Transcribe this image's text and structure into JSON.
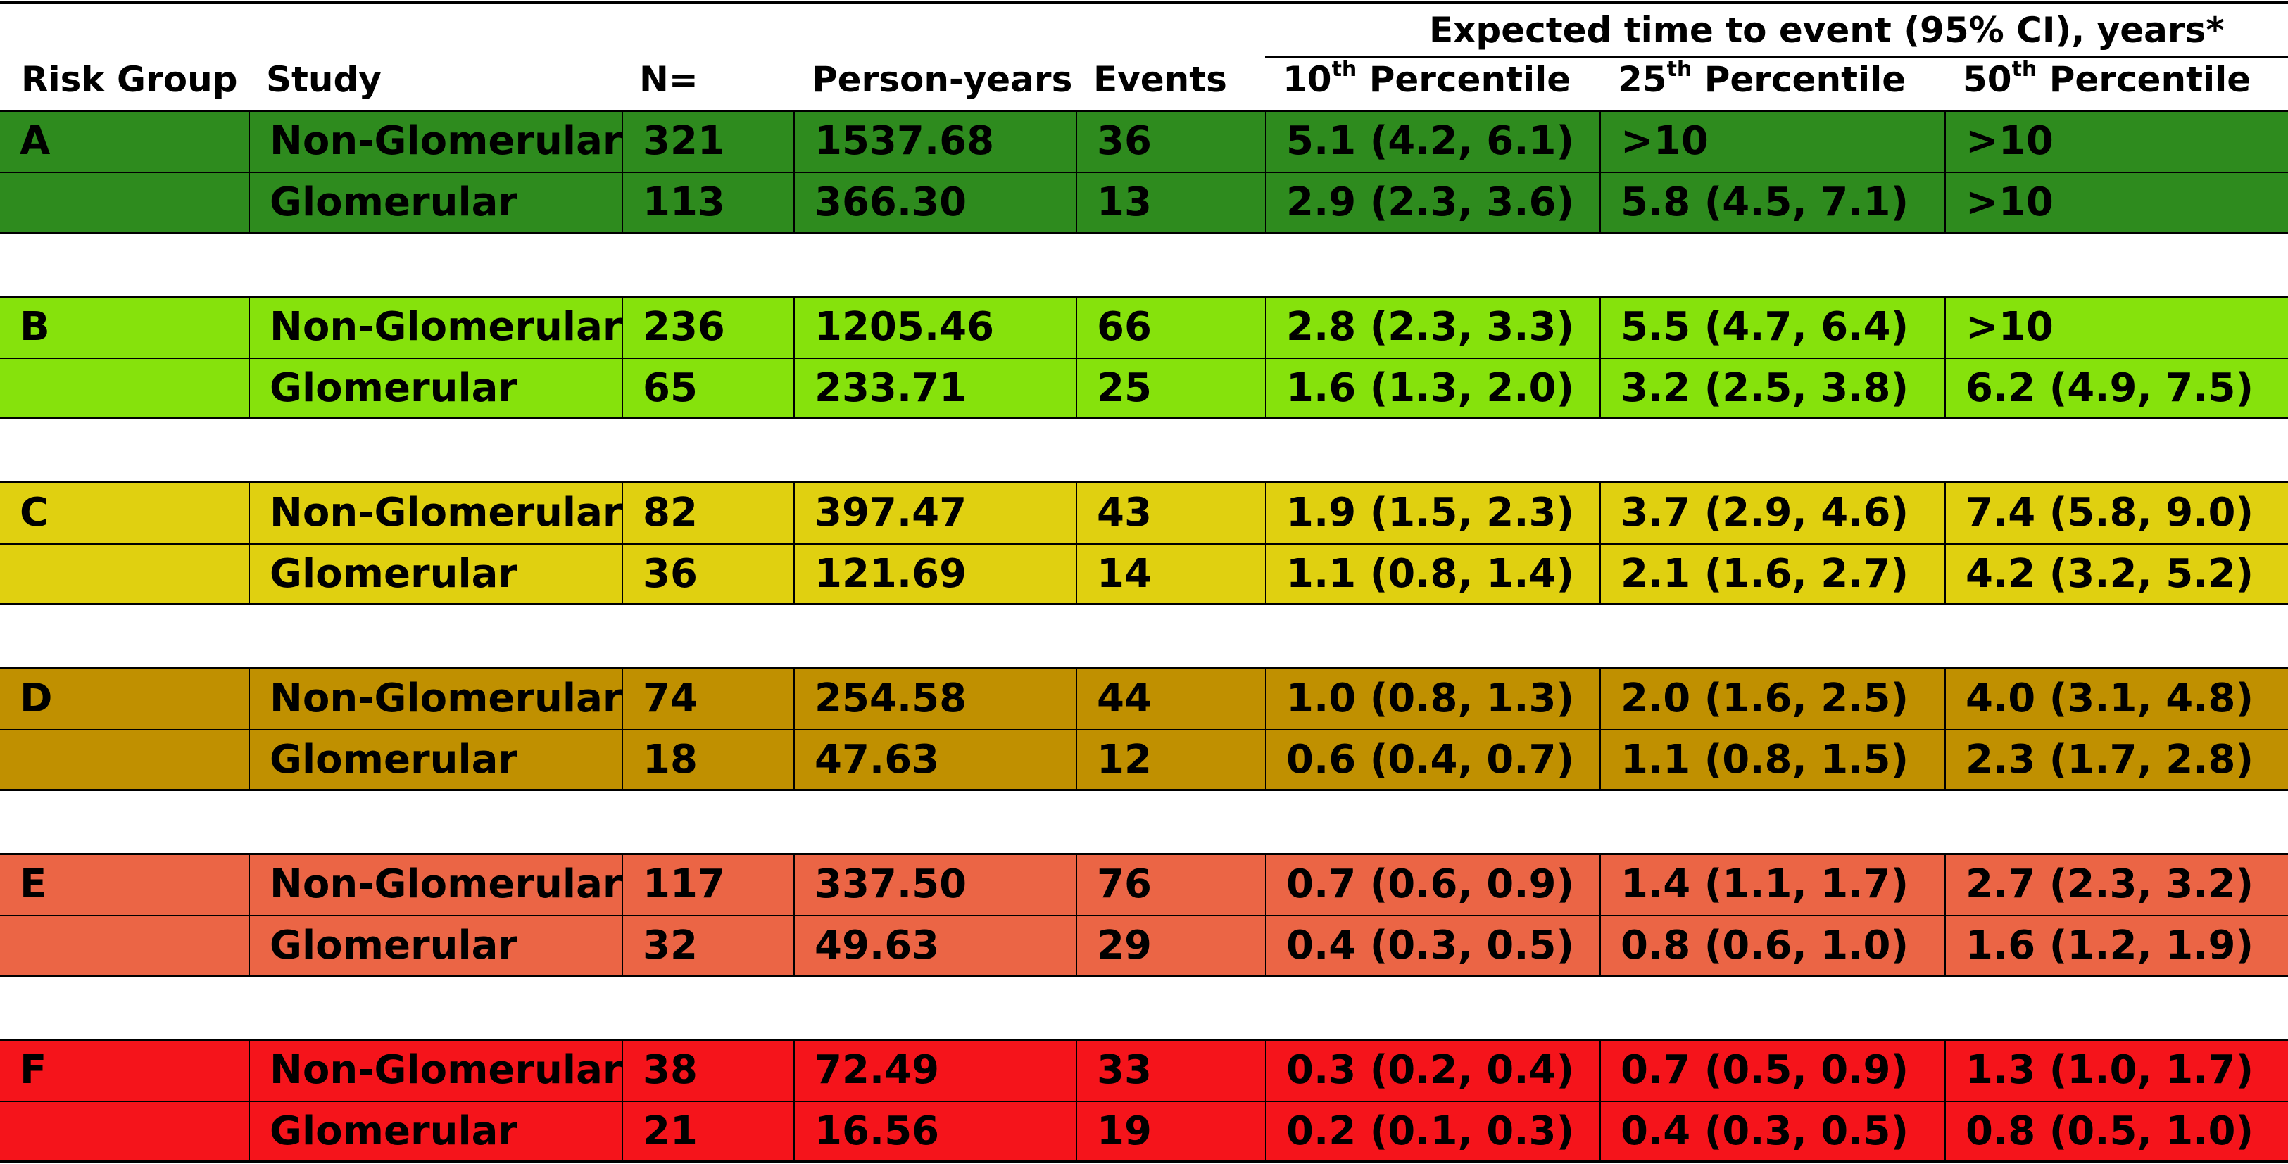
{
  "table": {
    "group_header": "Expected time to event (95% CI), years*",
    "columns": [
      {
        "label": "Risk Group",
        "sup": "",
        "suffix": ""
      },
      {
        "label": "Study",
        "sup": "",
        "suffix": ""
      },
      {
        "label": "N=",
        "sup": "",
        "suffix": ""
      },
      {
        "label": "Person-years",
        "sup": "",
        "suffix": ""
      },
      {
        "label": "Events",
        "sup": "",
        "suffix": ""
      },
      {
        "label": "10",
        "sup": "th",
        "suffix": " Percentile"
      },
      {
        "label": "25",
        "sup": "th",
        "suffix": " Percentile"
      },
      {
        "label": "50",
        "sup": "th",
        "suffix": " Percentile"
      }
    ],
    "groups": [
      {
        "name": "A",
        "color": "#2E8B1E",
        "rows": [
          {
            "study": "Non-Glomerular",
            "n": "321",
            "py": "1537.68",
            "events": "36",
            "p10": "5.1 (4.2, 6.1)",
            "p25": ">10",
            "p50": ">10"
          },
          {
            "study": "Glomerular",
            "n": "113",
            "py": "366.30",
            "events": "13",
            "p10": "2.9 (2.3, 3.6)",
            "p25": "5.8 (4.5, 7.1)",
            "p50": ">10"
          }
        ]
      },
      {
        "name": "B",
        "color": "#86E20C",
        "rows": [
          {
            "study": "Non-Glomerular",
            "n": "236",
            "py": "1205.46",
            "events": "66",
            "p10": "2.8 (2.3, 3.3)",
            "p25": "5.5 (4.7, 6.4)",
            "p50": ">10"
          },
          {
            "study": "Glomerular",
            "n": "65",
            "py": "233.71",
            "events": "25",
            "p10": "1.6 (1.3, 2.0)",
            "p25": "3.2 (2.5, 3.8)",
            "p50": "6.2 (4.9, 7.5)"
          }
        ]
      },
      {
        "name": "C",
        "color": "#E0D010",
        "rows": [
          {
            "study": "Non-Glomerular",
            "n": "82",
            "py": "397.47",
            "events": "43",
            "p10": "1.9 (1.5, 2.3)",
            "p25": "3.7 (2.9, 4.6)",
            "p50": "7.4 (5.8, 9.0)"
          },
          {
            "study": "Glomerular",
            "n": "36",
            "py": "121.69",
            "events": "14",
            "p10": "1.1 (0.8, 1.4)",
            "p25": "2.1 (1.6, 2.7)",
            "p50": "4.2 (3.2, 5.2)"
          }
        ]
      },
      {
        "name": "D",
        "color": "#C09000",
        "rows": [
          {
            "study": "Non-Glomerular",
            "n": "74",
            "py": "254.58",
            "events": "44",
            "p10": "1.0 (0.8, 1.3)",
            "p25": "2.0 (1.6, 2.5)",
            "p50": "4.0 (3.1, 4.8)"
          },
          {
            "study": "Glomerular",
            "n": "18",
            "py": "47.63",
            "events": "12",
            "p10": "0.6 (0.4, 0.7)",
            "p25": "1.1 (0.8, 1.5)",
            "p50": "2.3 (1.7, 2.8)"
          }
        ]
      },
      {
        "name": "E",
        "color": "#EB6545",
        "rows": [
          {
            "study": "Non-Glomerular",
            "n": "117",
            "py": "337.50",
            "events": "76",
            "p10": "0.7 (0.6, 0.9)",
            "p25": "1.4 (1.1, 1.7)",
            "p50": "2.7 (2.3, 3.2)"
          },
          {
            "study": "Glomerular",
            "n": "32",
            "py": "49.63",
            "events": "29",
            "p10": "0.4 (0.3, 0.5)",
            "p25": "0.8 (0.6, 1.0)",
            "p50": "1.6 (1.2, 1.9)"
          }
        ]
      },
      {
        "name": "F",
        "color": "#F5141B",
        "rows": [
          {
            "study": "Non-Glomerular",
            "n": "38",
            "py": "72.49",
            "events": "33",
            "p10": "0.3 (0.2, 0.4)",
            "p25": "0.7 (0.5, 0.9)",
            "p50": "1.3 (1.0, 1.7)"
          },
          {
            "study": "Glomerular",
            "n": "21",
            "py": "16.56",
            "events": "19",
            "p10": "0.2 (0.1, 0.3)",
            "p25": "0.4 (0.3, 0.5)",
            "p50": "0.8 (0.5, 1.0)"
          }
        ]
      }
    ]
  }
}
